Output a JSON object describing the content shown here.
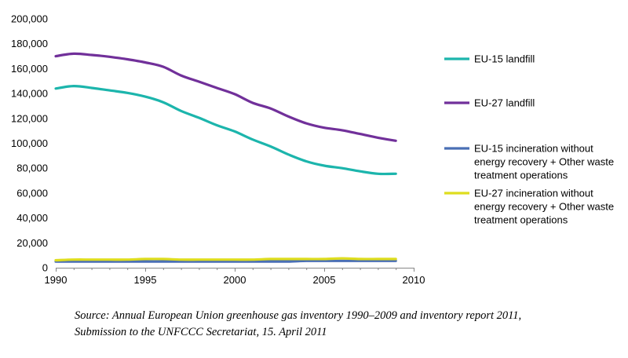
{
  "chart_data": {
    "type": "line",
    "title": "",
    "xlabel": "",
    "ylabel": "",
    "xlim": [
      1990,
      2010
    ],
    "ylim": [
      0,
      200000
    ],
    "x_ticks": [
      1990,
      1995,
      2000,
      2005,
      2010
    ],
    "x_tick_labels": [
      "1990",
      "1995",
      "2000",
      "2005",
      "2010"
    ],
    "y_ticks": [
      0,
      20000,
      40000,
      60000,
      80000,
      100000,
      120000,
      140000,
      160000,
      180000,
      200000
    ],
    "y_tick_labels": [
      "0",
      "20,000",
      "40,000",
      "60,000",
      "80,000",
      "100,000",
      "120,000",
      "140,000",
      "160,000",
      "180,000",
      "200,000"
    ],
    "legend_position": "right",
    "grid": false,
    "x": [
      1990,
      1991,
      1992,
      1993,
      1994,
      1995,
      1996,
      1997,
      1998,
      1999,
      2000,
      2001,
      2002,
      2003,
      2004,
      2005,
      2006,
      2007,
      2008,
      2009
    ],
    "series": [
      {
        "name": "EU-15 landfill",
        "label_lines": [
          "EU-15 landfill"
        ],
        "color": "#1cb5ac",
        "values": [
          144000,
          146000,
          144500,
          142500,
          140500,
          137500,
          133000,
          126000,
          120500,
          114500,
          109500,
          103000,
          97500,
          91000,
          85500,
          82000,
          80000,
          77500,
          75500,
          75500
        ]
      },
      {
        "name": "EU-27 landfill",
        "label_lines": [
          "EU-27 landfill"
        ],
        "color": "#71309a",
        "values": [
          170000,
          172000,
          171000,
          169500,
          167500,
          165000,
          161500,
          154500,
          149500,
          144500,
          139500,
          132500,
          128000,
          121500,
          116000,
          112500,
          110500,
          107500,
          104500,
          102000
        ]
      },
      {
        "name": "EU-15 incineration without energy recovery + Other waste treatment operations",
        "label_lines": [
          "EU-15 incineration without",
          "energy recovery + Other waste",
          "treatment operations"
        ],
        "color": "#4a6fb5",
        "values": [
          5000,
          5000,
          5000,
          5000,
          5000,
          5000,
          5000,
          5000,
          5000,
          5000,
          5000,
          5000,
          5000,
          5000,
          5500,
          5500,
          5500,
          5500,
          5500,
          5500
        ]
      },
      {
        "name": "EU-27 incineration without energy recovery + Other waste treatment operations",
        "label_lines": [
          "EU-27 incineration without",
          "energy recovery + Other waste",
          "treatment operations"
        ],
        "color": "#dedd1e",
        "values": [
          6000,
          6500,
          6500,
          6500,
          6500,
          7000,
          7000,
          6500,
          6500,
          6500,
          6500,
          6500,
          7000,
          7000,
          7000,
          7000,
          7500,
          7000,
          7000,
          7000
        ]
      }
    ]
  },
  "source": {
    "line1": "Source: Annual European Union greenhouse gas inventory 1990–2009 and inventory report 2011,",
    "line2": "Submission to the UNFCCC Secretariat, 15. April 2011"
  }
}
